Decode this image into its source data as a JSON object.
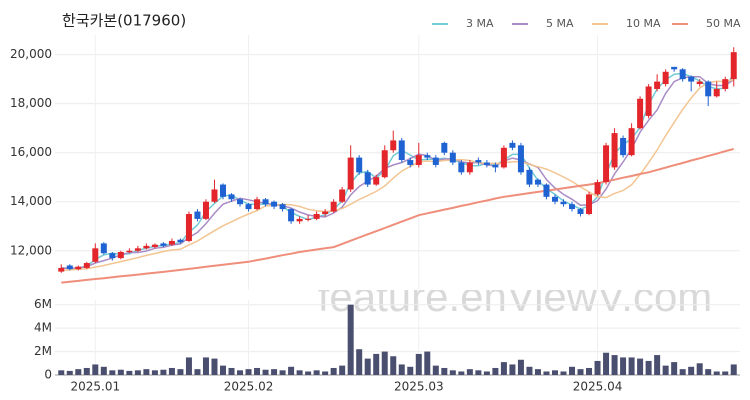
{
  "chart_data": {
    "type": "candlestick",
    "title": "한국카본(017960)",
    "watermark": "feature.enViewV.com",
    "categories": [
      null,
      null,
      null,
      null,
      "2025.01",
      null,
      null,
      null,
      null,
      null,
      null,
      null,
      null,
      null,
      null,
      null,
      null,
      null,
      null,
      null,
      null,
      null,
      "2025.02",
      null,
      null,
      null,
      null,
      null,
      null,
      null,
      null,
      null,
      null,
      null,
      null,
      null,
      null,
      null,
      null,
      null,
      null,
      null,
      "2025.03",
      null,
      null,
      null,
      null,
      null,
      null,
      null,
      null,
      null,
      null,
      null,
      null,
      null,
      null,
      null,
      null,
      null,
      null,
      null,
      null,
      "2025.04",
      null,
      null,
      null,
      null,
      null,
      null,
      null,
      null,
      null,
      null,
      null,
      null,
      null,
      null,
      null,
      null
    ],
    "open": [
      11150,
      11400,
      11250,
      11300,
      11550,
      12300,
      11900,
      11700,
      11950,
      12000,
      12100,
      12150,
      12300,
      12250,
      12450,
      12400,
      13600,
      13300,
      14000,
      14700,
      14300,
      14100,
      13900,
      13700,
      14100,
      14000,
      13900,
      13700,
      13200,
      13300,
      13300,
      13500,
      13600,
      14000,
      14500,
      15800,
      15200,
      14700,
      15000,
      16100,
      16500,
      15700,
      15500,
      15900,
      15800,
      16400,
      16000,
      15600,
      15200,
      15700,
      15600,
      15500,
      15400,
      16400,
      16300,
      15300,
      14900,
      14700,
      14200,
      14000,
      13900,
      13700,
      13500,
      14300,
      14800,
      15400,
      16600,
      15900,
      17000,
      17500,
      18600,
      18800,
      19500,
      19400,
      19100,
      18800,
      18900,
      18300,
      18600,
      19000
    ],
    "high": [
      11450,
      11450,
      11400,
      11550,
      12300,
      12350,
      11950,
      12000,
      12100,
      12200,
      12300,
      12300,
      12350,
      12500,
      12500,
      13600,
      13700,
      14100,
      14900,
      14750,
      14350,
      14150,
      13950,
      14200,
      14150,
      14050,
      13950,
      13750,
      13400,
      13450,
      13600,
      13700,
      14100,
      14600,
      16300,
      15900,
      15300,
      15100,
      16300,
      16900,
      16600,
      15800,
      16400,
      16000,
      15900,
      16450,
      16100,
      15700,
      15700,
      15800,
      15700,
      15600,
      16300,
      16500,
      16400,
      15400,
      14950,
      14750,
      14300,
      14100,
      14000,
      13750,
      14400,
      14900,
      16400,
      17000,
      16700,
      17200,
      18300,
      18800,
      19200,
      19400,
      19500,
      19450,
      19150,
      19000,
      18950,
      18900,
      19100,
      20300
    ],
    "low": [
      11100,
      11200,
      11200,
      11250,
      11500,
      11850,
      11600,
      11650,
      11900,
      11950,
      12050,
      12100,
      12150,
      12200,
      12300,
      12350,
      13200,
      13250,
      13950,
      14100,
      14000,
      13800,
      13600,
      13650,
      13800,
      13700,
      13600,
      13100,
      13100,
      13200,
      13250,
      13400,
      13550,
      13950,
      14400,
      15100,
      14600,
      14650,
      14950,
      16000,
      15600,
      15400,
      15400,
      15700,
      15400,
      15900,
      15500,
      15100,
      15100,
      15500,
      15400,
      15200,
      15350,
      16100,
      15100,
      14600,
      14600,
      14100,
      13900,
      13800,
      13600,
      13400,
      13450,
      14250,
      14700,
      15300,
      15800,
      15850,
      16950,
      17400,
      18500,
      18700,
      19300,
      18900,
      18500,
      18700,
      17900,
      18250,
      18500,
      18700
    ],
    "close": [
      11300,
      11250,
      11350,
      11500,
      12100,
      11900,
      11700,
      11950,
      12000,
      12100,
      12200,
      12250,
      12200,
      12400,
      12350,
      13500,
      13300,
      14000,
      14500,
      14200,
      14100,
      13900,
      13700,
      14100,
      13900,
      13800,
      13700,
      13200,
      13300,
      13300,
      13500,
      13600,
      14000,
      14500,
      15800,
      15200,
      14700,
      15000,
      16100,
      16500,
      15700,
      15500,
      15900,
      15800,
      15500,
      16000,
      15600,
      15200,
      15600,
      15600,
      15500,
      15400,
      16200,
      16200,
      15200,
      14700,
      14700,
      14200,
      14000,
      13900,
      13700,
      13500,
      14300,
      14800,
      16300,
      16800,
      15900,
      17000,
      18200,
      18700,
      18900,
      19300,
      19400,
      19000,
      18900,
      18900,
      18300,
      18600,
      19000,
      20100
    ],
    "volume": [
      400000,
      350000,
      500000,
      600000,
      900000,
      700000,
      400000,
      450000,
      350000,
      400000,
      500000,
      400000,
      450000,
      600000,
      500000,
      1500000,
      500000,
      1500000,
      1400000,
      800000,
      600000,
      400000,
      500000,
      600000,
      450000,
      500000,
      400000,
      700000,
      400000,
      300000,
      400000,
      300000,
      600000,
      800000,
      6000000,
      2200000,
      1400000,
      1800000,
      2000000,
      1600000,
      900000,
      700000,
      1800000,
      2000000,
      800000,
      600000,
      400000,
      300000,
      500000,
      400000,
      300000,
      600000,
      1100000,
      900000,
      1300000,
      700000,
      500000,
      300000,
      400000,
      300000,
      700000,
      500000,
      600000,
      1200000,
      1900000,
      1700000,
      1500000,
      1500000,
      1400000,
      1200000,
      1700000,
      800000,
      1100000,
      500000,
      700000,
      1000000,
      500000,
      300000,
      300000,
      900000
    ],
    "up_color": "#e3262b",
    "down_color": "#1f62d2",
    "volume_color": "#4b4f6f",
    "series": [
      {
        "name": "3 MA",
        "color": "#72cbd6",
        "values": [
          11300,
          11280,
          11300,
          11370,
          11650,
          11830,
          11900,
          11850,
          11880,
          12020,
          12100,
          12180,
          12220,
          12280,
          12320,
          12750,
          13050,
          13600,
          13930,
          14230,
          14270,
          14070,
          13900,
          13900,
          13900,
          13930,
          13800,
          13570,
          13400,
          13270,
          13370,
          13470,
          13700,
          14030,
          14770,
          15170,
          15230,
          14970,
          15270,
          15870,
          16100,
          15900,
          15700,
          15730,
          15730,
          15770,
          15700,
          15600,
          15470,
          15470,
          15570,
          15500,
          15700,
          15930,
          15930,
          15370,
          14870,
          14530,
          14300,
          14030,
          13870,
          13700,
          13830,
          14200,
          15130,
          15970,
          16330,
          16570,
          17030,
          17970,
          18600,
          18970,
          19200,
          19230,
          19100,
          18930,
          18700,
          18600,
          18630,
          19230
        ]
      },
      {
        "name": "5 MA",
        "color": "#a98cc6",
        "values": [
          11300,
          11280,
          11300,
          11350,
          11500,
          11600,
          11700,
          11830,
          11930,
          11930,
          11990,
          12100,
          12140,
          12230,
          12280,
          12540,
          12750,
          13110,
          13530,
          13900,
          14020,
          14140,
          14080,
          14000,
          13940,
          13880,
          13840,
          13740,
          13580,
          13460,
          13400,
          13380,
          13540,
          13780,
          14280,
          14620,
          14840,
          15040,
          15360,
          15500,
          15600,
          15760,
          15940,
          15880,
          15680,
          15740,
          15760,
          15620,
          15580,
          15600,
          15500,
          15460,
          15660,
          15780,
          15700,
          15540,
          15400,
          14900,
          14560,
          14300,
          14100,
          13860,
          13880,
          14040,
          14520,
          15140,
          15620,
          16160,
          16840,
          17320,
          17740,
          18420,
          18900,
          19060,
          19100,
          19100,
          18820,
          18740,
          18740,
          18980
        ]
      },
      {
        "name": "10 MA",
        "color": "#f3c592",
        "values": [
          11200,
          11220,
          11240,
          11270,
          11340,
          11400,
          11480,
          11560,
          11640,
          11720,
          11810,
          11890,
          11970,
          12030,
          12060,
          12240,
          12400,
          12610,
          12820,
          13020,
          13180,
          13350,
          13500,
          13640,
          13830,
          13860,
          13900,
          13870,
          13810,
          13690,
          13630,
          13600,
          13630,
          13720,
          13900,
          14090,
          14250,
          14420,
          14640,
          14960,
          15250,
          15440,
          15620,
          15660,
          15630,
          15680,
          15700,
          15720,
          15680,
          15590,
          15570,
          15560,
          15590,
          15630,
          15640,
          15520,
          15430,
          15330,
          15180,
          15010,
          14830,
          14600,
          14400,
          14200,
          14170,
          14340,
          14460,
          14690,
          15110,
          15590,
          16110,
          16690,
          17240,
          17770,
          18230,
          18640,
          18860,
          18910,
          18900,
          18980
        ]
      },
      {
        "name": "50 MA",
        "color": "#ef8e7a",
        "values": [
          10700,
          10740,
          10770,
          10810,
          10850,
          10880,
          10920,
          10960,
          10990,
          11030,
          11070,
          11100,
          11140,
          11180,
          11220,
          11260,
          11300,
          11350,
          11390,
          11430,
          11470,
          11510,
          11550,
          11620,
          11680,
          11750,
          11820,
          11880,
          11950,
          12000,
          12050,
          12100,
          12150,
          12280,
          12410,
          12540,
          12670,
          12800,
          12930,
          13060,
          13190,
          13320,
          13450,
          13530,
          13600,
          13680,
          13750,
          13830,
          13900,
          13980,
          14050,
          14130,
          14200,
          14250,
          14300,
          14350,
          14400,
          14450,
          14500,
          14550,
          14600,
          14650,
          14700,
          14750,
          14830,
          14900,
          14980,
          15050,
          15130,
          15200,
          15300,
          15390,
          15490,
          15580,
          15680,
          15770,
          15870,
          15960,
          16060,
          16150
        ]
      }
    ],
    "ylim": [
      10400,
      20800
    ],
    "yticks": [
      {
        "value": 12000,
        "label": "12,000"
      },
      {
        "value": 14000,
        "label": "14,000"
      },
      {
        "value": 16000,
        "label": "16,000"
      },
      {
        "value": 18000,
        "label": "18,000"
      },
      {
        "value": 20000,
        "label": "20,000"
      }
    ],
    "volume_ylim": [
      0,
      6400000
    ],
    "volume_yticks": [
      0,
      {
        "value": 2000000,
        "label": "2M"
      },
      {
        "value": 4000000,
        "label": "4M"
      },
      {
        "value": 6000000,
        "label": "6M"
      }
    ],
    "grid": true
  }
}
